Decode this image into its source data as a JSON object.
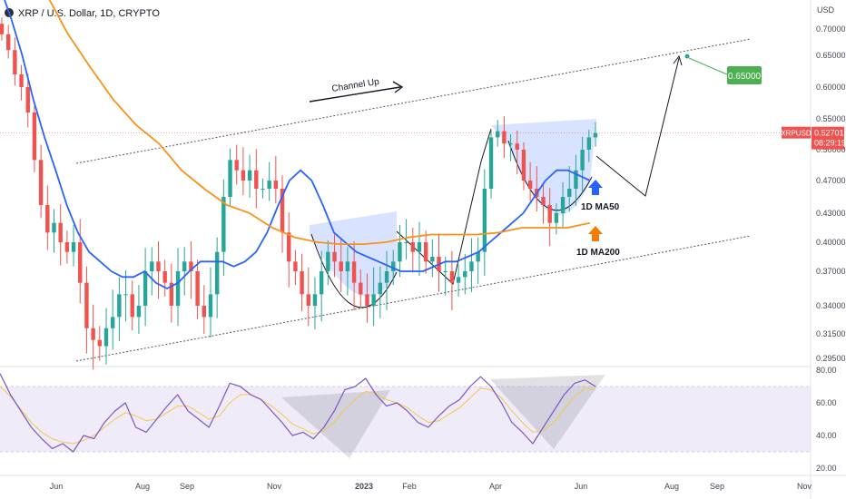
{
  "header": {
    "title": "XRP / U.S. Dollar, 1D, CRYPTO"
  },
  "chart_data": [
    {
      "type": "candlestick",
      "title": "XRP / U.S. Dollar, 1D, CRYPTO",
      "y_axis_unit": "USD",
      "y_ticks": [
        "0.70000",
        "0.65000",
        "0.60000",
        "0.55000",
        "0.50000",
        "0.47000",
        "0.43000",
        "0.40000",
        "0.37000",
        "0.34000",
        "0.31500",
        "0.29500"
      ],
      "y_ticks_values": [
        0.7,
        0.65,
        0.6,
        0.55,
        0.5,
        0.47,
        0.43,
        0.4,
        0.37,
        0.34,
        0.315,
        0.295
      ],
      "x_ticks": [
        "Jun",
        "Aug",
        "Sep",
        "Nov",
        "2023",
        "Feb",
        "Apr",
        "Jun",
        "Aug",
        "Sep",
        "Nov"
      ],
      "last_price": {
        "symbol": "XRPUSD",
        "value": "0.52701",
        "countdown": "08:29:19"
      },
      "target": {
        "label": "0.65000",
        "value": 0.65
      },
      "close_series": [
        0.69,
        0.66,
        0.62,
        0.6,
        0.56,
        0.49,
        0.44,
        0.41,
        0.42,
        0.4,
        0.39,
        0.4,
        0.36,
        0.32,
        0.31,
        0.305,
        0.32,
        0.33,
        0.35,
        0.35,
        0.33,
        0.34,
        0.37,
        0.38,
        0.37,
        0.36,
        0.34,
        0.37,
        0.38,
        0.37,
        0.34,
        0.33,
        0.35,
        0.39,
        0.45,
        0.49,
        0.48,
        0.47,
        0.48,
        0.46,
        0.46,
        0.47,
        0.46,
        0.41,
        0.38,
        0.37,
        0.35,
        0.34,
        0.35,
        0.37,
        0.39,
        0.38,
        0.37,
        0.38,
        0.36,
        0.35,
        0.34,
        0.35,
        0.36,
        0.37,
        0.38,
        0.4,
        0.4,
        0.39,
        0.4,
        0.38,
        0.385,
        0.37,
        0.37,
        0.36,
        0.365,
        0.37,
        0.38,
        0.39,
        0.46,
        0.52,
        0.53,
        0.51,
        0.51,
        0.5,
        0.47,
        0.46,
        0.45,
        0.44,
        0.42,
        0.43,
        0.45,
        0.46,
        0.48,
        0.5,
        0.52,
        0.52701
      ],
      "series": [
        {
          "name": "1D MA50",
          "color": "#2962ff",
          "values": [
            0.78,
            0.72,
            0.65,
            0.58,
            0.52,
            0.48,
            0.44,
            0.41,
            0.39,
            0.38,
            0.37,
            0.365,
            0.365,
            0.37,
            0.36,
            0.355,
            0.36,
            0.37,
            0.38,
            0.38,
            0.38,
            0.375,
            0.38,
            0.39,
            0.41,
            0.44,
            0.47,
            0.48,
            0.47,
            0.44,
            0.41,
            0.4,
            0.39,
            0.385,
            0.38,
            0.375,
            0.37,
            0.37,
            0.37,
            0.375,
            0.38,
            0.38,
            0.385,
            0.39,
            0.4,
            0.41,
            0.42,
            0.43,
            0.45,
            0.47,
            0.48,
            0.48,
            0.475,
            0.47
          ]
        },
        {
          "name": "1D MA200",
          "color": "#f7931a",
          "values": [
            0.95,
            0.86,
            0.77,
            0.69,
            0.63,
            0.58,
            0.54,
            0.51,
            0.48,
            0.46,
            0.44,
            0.43,
            0.415,
            0.405,
            0.4,
            0.398,
            0.398,
            0.4,
            0.405,
            0.408,
            0.408,
            0.408,
            0.41,
            0.415,
            0.415,
            0.415,
            0.42
          ]
        }
      ],
      "annotations": [
        {
          "text": "Channel Up"
        },
        {
          "text": "1D MA50"
        },
        {
          "text": "1D MA200"
        }
      ]
    },
    {
      "type": "line",
      "title": "RSI",
      "y_ticks": [
        "80.00",
        "60.00",
        "40.00",
        "20.00"
      ],
      "y_ticks_values": [
        80,
        60,
        40,
        20
      ],
      "band": [
        30,
        70
      ],
      "series": [
        {
          "color": "#7e57c2",
          "values": [
            78,
            65,
            55,
            45,
            38,
            32,
            35,
            30,
            40,
            38,
            48,
            55,
            60,
            45,
            42,
            50,
            58,
            65,
            55,
            50,
            45,
            58,
            72,
            70,
            65,
            62,
            55,
            48,
            40,
            42,
            38,
            45,
            55,
            68,
            70,
            75,
            65,
            58,
            60,
            55,
            48,
            45,
            52,
            58,
            62,
            70,
            76,
            70,
            60,
            48,
            42,
            35,
            45,
            55,
            65,
            72,
            74,
            70
          ]
        },
        {
          "color": "#f2c94c",
          "values": [
            70,
            64,
            56,
            48,
            42,
            38,
            36,
            35,
            37,
            40,
            45,
            50,
            54,
            52,
            49,
            50,
            54,
            58,
            58,
            54,
            50,
            52,
            60,
            65,
            65,
            62,
            58,
            53,
            47,
            44,
            41,
            43,
            48,
            56,
            62,
            67,
            66,
            62,
            60,
            57,
            52,
            48,
            49,
            53,
            57,
            63,
            69,
            68,
            63,
            55,
            48,
            42,
            43,
            48,
            56,
            64,
            69,
            68
          ]
        }
      ]
    }
  ]
}
